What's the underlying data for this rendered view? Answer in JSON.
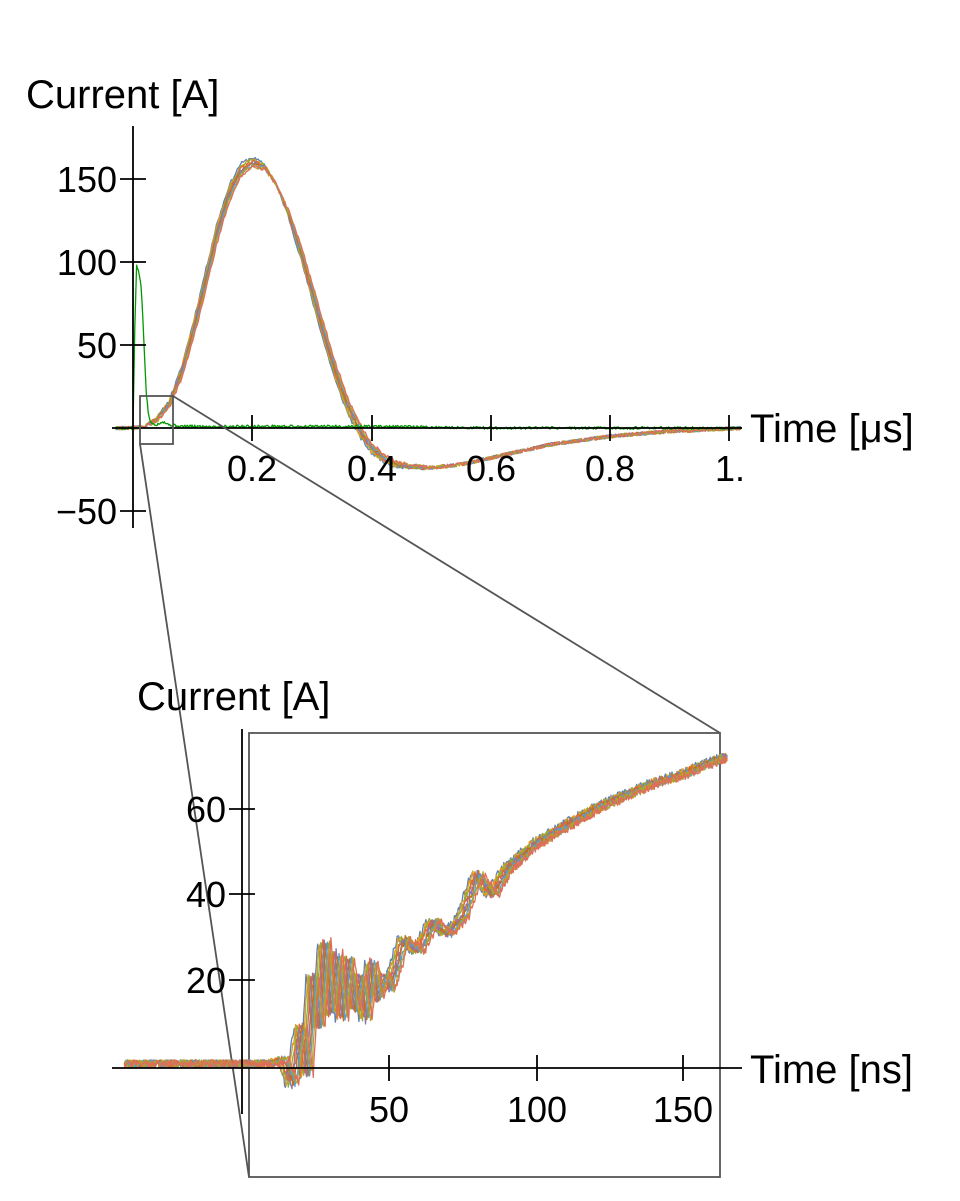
{
  "chart_data": [
    {
      "type": "line",
      "xlabel": "Time [μs]",
      "ylabel": "Current [A]",
      "x_ticks": [
        "0.2",
        "0.4",
        "0.6",
        "0.8",
        "1."
      ],
      "y_ticks": [
        "−50",
        "50",
        "100",
        "150"
      ],
      "xlim": [
        -0.03,
        1.02
      ],
      "ylim": [
        -55,
        175
      ],
      "series_colors": [
        "#5e81b5",
        "#e19c24",
        "#8fb032",
        "#eb6235",
        "#8778b3",
        "#c56e1a",
        "#5d9ec7",
        "#b0a526",
        "#e06d5a"
      ],
      "series": [
        {
          "color": "#5e81b5",
          "x": [
            -0.03,
            0.0,
            0.02,
            0.04,
            0.06,
            0.08,
            0.1,
            0.12,
            0.14,
            0.16,
            0.18,
            0.2,
            0.22,
            0.24,
            0.26,
            0.28,
            0.3,
            0.32,
            0.34,
            0.36,
            0.38,
            0.4,
            0.42,
            0.44,
            0.46,
            0.48,
            0.5,
            0.55,
            0.6,
            0.65,
            0.7,
            0.8,
            0.9,
            1.02
          ],
          "y": [
            0,
            0,
            1,
            6,
            16,
            35,
            62,
            92,
            122,
            145,
            159,
            163,
            159,
            147,
            128,
            104,
            78,
            52,
            28,
            9,
            -5,
            -15,
            -20,
            -23,
            -24,
            -24,
            -24,
            -22,
            -18,
            -14,
            -10,
            -5,
            -2,
            0
          ]
        },
        {
          "color": "#eb6235",
          "x": [
            -0.03,
            0.0,
            0.02,
            0.04,
            0.06,
            0.08,
            0.1,
            0.12,
            0.14,
            0.16,
            0.18,
            0.2,
            0.22,
            0.24,
            0.26,
            0.28,
            0.3,
            0.32,
            0.34,
            0.36,
            0.38,
            0.4,
            0.42,
            0.44,
            0.46,
            0.48,
            0.5,
            0.55,
            0.6,
            0.65,
            0.7,
            0.8,
            0.9,
            1.02
          ],
          "y": [
            0,
            0,
            1,
            4,
            12,
            28,
            52,
            80,
            110,
            135,
            151,
            157,
            156,
            147,
            132,
            112,
            88,
            63,
            39,
            18,
            3,
            -9,
            -16,
            -20,
            -22,
            -23,
            -24,
            -22,
            -18,
            -14,
            -10,
            -5,
            -2,
            0
          ]
        },
        {
          "color": "#009900",
          "x": [
            -0.03,
            0.0,
            0.003,
            0.006,
            0.01,
            0.014,
            0.018,
            0.022,
            0.026,
            0.03,
            0.04,
            0.05,
            0.06,
            0.08,
            0.1,
            0.2,
            0.4,
            0.6,
            0.8,
            1.02
          ],
          "y": [
            0,
            0,
            60,
            98,
            93,
            85,
            55,
            22,
            8,
            3,
            2,
            4,
            2,
            1,
            1,
            1,
            1,
            0,
            0,
            0
          ]
        }
      ]
    },
    {
      "type": "line",
      "xlabel": "Time [ns]",
      "ylabel": "Current [A]",
      "x_ticks": [
        "50",
        "100",
        "150"
      ],
      "y_ticks": [
        "20",
        "40",
        "60"
      ],
      "xlim": [
        -40,
        165
      ],
      "ylim": [
        -8,
        76
      ],
      "series_colors": [
        "#5e81b5",
        "#e19c24",
        "#8fb032",
        "#eb6235",
        "#8778b3",
        "#c56e1a",
        "#5d9ec7",
        "#b0a526",
        "#e06d5a"
      ],
      "series": [
        {
          "color": "#8778b3",
          "x": [
            -40,
            0,
            10,
            14,
            17,
            20,
            22,
            24,
            26,
            28,
            30,
            32,
            34,
            36,
            38,
            40,
            42,
            44,
            46,
            48,
            50,
            55,
            60,
            65,
            70,
            75,
            80,
            85,
            90,
            95,
            100,
            110,
            120,
            130,
            140,
            150,
            160,
            165
          ],
          "y": [
            1,
            1,
            1,
            2,
            -4,
            10,
            -2,
            22,
            9,
            30,
            12,
            27,
            11,
            26,
            13,
            22,
            11,
            25,
            16,
            22,
            18,
            30,
            27,
            34,
            31,
            35,
            45,
            40,
            46,
            49,
            52,
            56,
            60,
            63,
            66,
            68,
            71,
            72
          ]
        }
      ]
    }
  ]
}
